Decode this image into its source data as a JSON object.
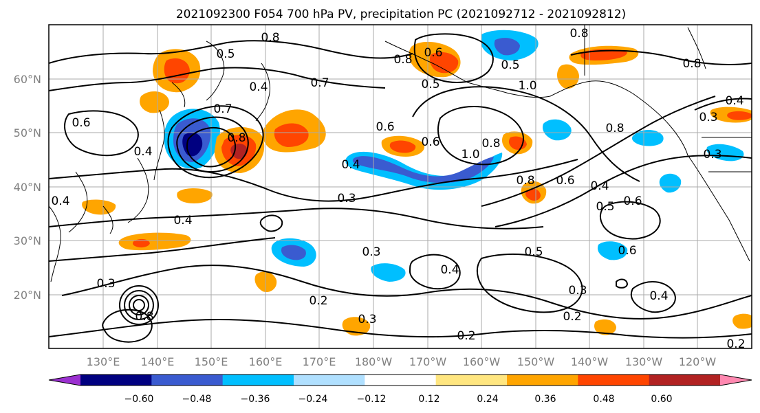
{
  "title": "2021092300 F054 700 hPa PV, precipitation PC (2021092712 - 2021092812)",
  "lon_ticks": [
    "130°E",
    "140°E",
    "150°E",
    "160°E",
    "170°E",
    "180°W",
    "170°W",
    "160°W",
    "150°W",
    "140°W",
    "130°W",
    "120°W"
  ],
  "lat_ticks": [
    "60°N",
    "50°N",
    "40°N",
    "30°N",
    "20°N"
  ],
  "contour_labels": [
    "0.8",
    "0.8",
    "0.5",
    "0.4",
    "0.7",
    "0.6",
    "0.4",
    "0.7",
    "0.8",
    "0.6",
    "0.4",
    "0.4",
    "0.3",
    "0.4",
    "0.3",
    "0.3",
    "0.2",
    "0.3",
    "0.4",
    "0.5",
    "0.3",
    "0.2",
    "0.2",
    "0.5",
    "0.6",
    "0.8",
    "1.0",
    "0.8",
    "0.5",
    "1.0",
    "0.8",
    "0.6",
    "0.8",
    "0.4",
    "0.5",
    "0.6",
    "0.6",
    "0.4",
    "0.4",
    "0.3",
    "0.3",
    "0.2",
    "0.8",
    "0.6",
    "0.8"
  ],
  "colorbar": {
    "colors": [
      "#9b30d0",
      "#000080",
      "#3a5bd0",
      "#00bfff",
      "#b0e0ff",
      "#ffffff",
      "#ffe680",
      "#ffa500",
      "#ff4500",
      "#b22222",
      "#ff88b0"
    ],
    "labels": [
      "−0.60",
      "−0.48",
      "−0.36",
      "−0.24",
      "−0.12",
      "0.12",
      "0.24",
      "0.36",
      "0.48",
      "0.60"
    ]
  },
  "colors": {
    "contour": "#000000",
    "grid": "#aaaaaa",
    "neg_light": "#00bfff",
    "neg_mid": "#3a5bd0",
    "neg_dark": "#000080",
    "pos_light": "#ffa500",
    "pos_mid": "#ff4500",
    "pos_dark": "#b22222",
    "pos_pale": "#ffe680"
  }
}
